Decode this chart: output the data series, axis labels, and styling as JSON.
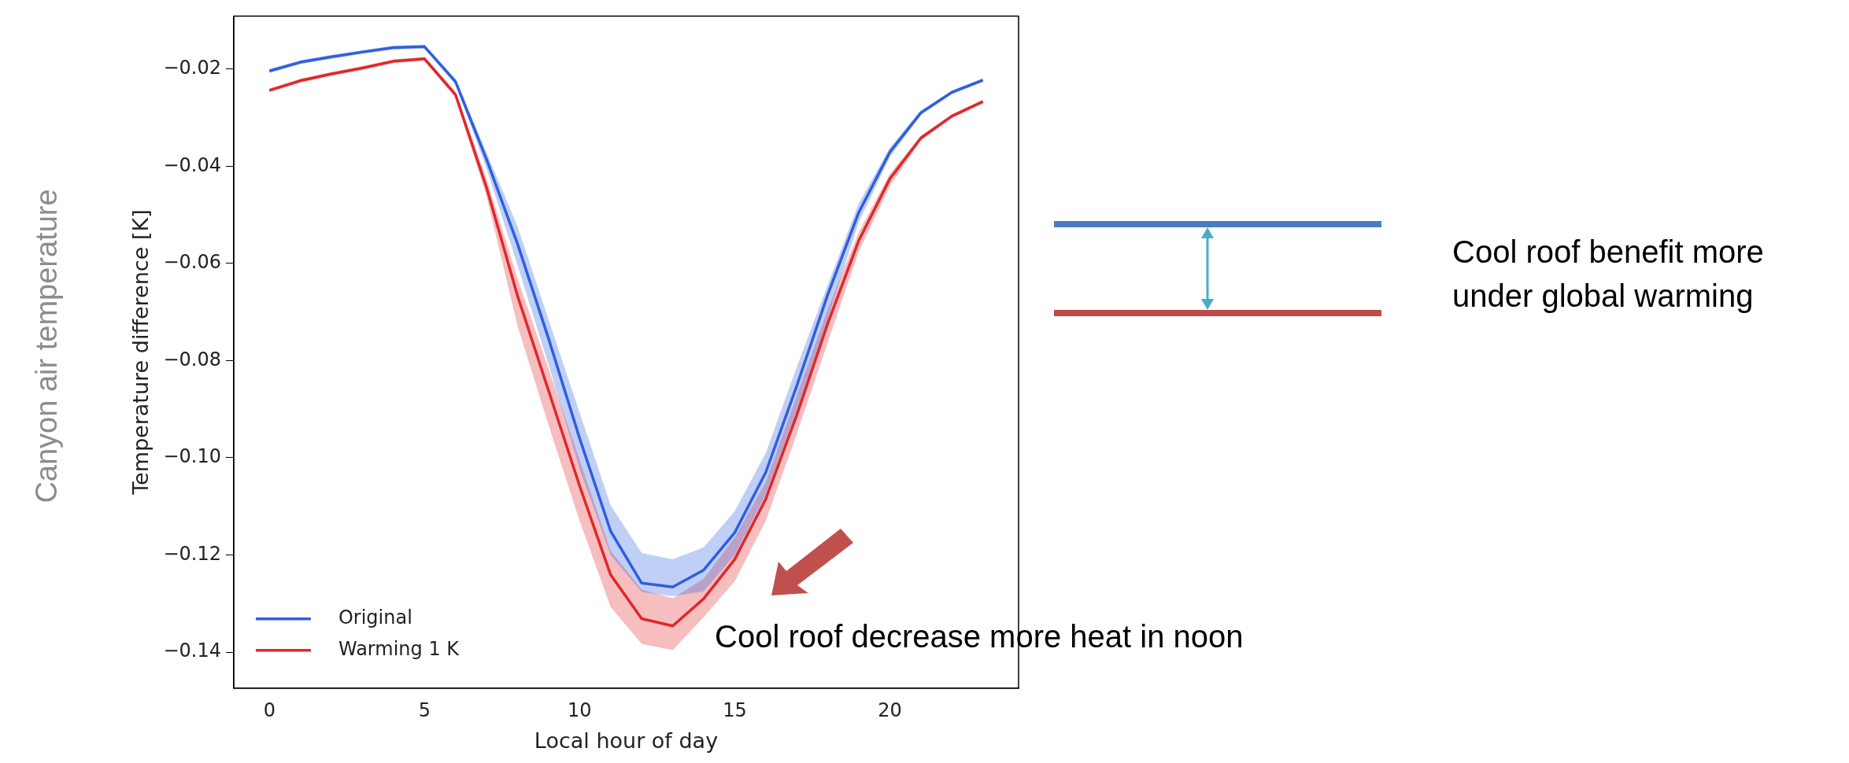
{
  "chart_data": {
    "type": "line",
    "xlabel": "Local hour of day",
    "ylabel": "Temperature difference [K]",
    "x": [
      0,
      1,
      2,
      3,
      4,
      5,
      6,
      7,
      8,
      9,
      10,
      11,
      12,
      13,
      14,
      15,
      16,
      17,
      18,
      19,
      20,
      21,
      22,
      23
    ],
    "series": [
      {
        "name": "Original",
        "color": "#2f5fe0",
        "values": [
          -0.0204,
          -0.0186,
          -0.0175,
          -0.0165,
          -0.0156,
          -0.0154,
          -0.0226,
          -0.0386,
          -0.056,
          -0.0755,
          -0.096,
          -0.1151,
          -0.1258,
          -0.1266,
          -0.1231,
          -0.1154,
          -0.103,
          -0.0852,
          -0.0664,
          -0.0495,
          -0.0371,
          -0.029,
          -0.0248,
          -0.0223
        ],
        "lower": [
          -0.0208,
          -0.019,
          -0.0179,
          -0.0169,
          -0.016,
          -0.0158,
          -0.0232,
          -0.0405,
          -0.0604,
          -0.0809,
          -0.1023,
          -0.12,
          -0.1276,
          -0.1285,
          -0.1275,
          -0.12,
          -0.1075,
          -0.0902,
          -0.0713,
          -0.0515,
          -0.0381,
          -0.0295,
          -0.0252,
          -0.0227
        ],
        "upper": [
          -0.02,
          -0.0182,
          -0.0171,
          -0.0161,
          -0.0152,
          -0.015,
          -0.022,
          -0.0372,
          -0.0524,
          -0.0716,
          -0.0907,
          -0.1098,
          -0.1196,
          -0.1209,
          -0.1184,
          -0.111,
          -0.099,
          -0.0813,
          -0.0644,
          -0.0476,
          -0.0362,
          -0.0285,
          -0.0244,
          -0.0219
        ]
      },
      {
        "name": "Warming 1 K",
        "color": "#e0282a",
        "values": [
          -0.0244,
          -0.0224,
          -0.021,
          -0.0198,
          -0.0184,
          -0.0179,
          -0.0253,
          -0.0444,
          -0.0667,
          -0.0862,
          -0.1058,
          -0.1241,
          -0.1331,
          -0.1346,
          -0.129,
          -0.1209,
          -0.1085,
          -0.0912,
          -0.0723,
          -0.0553,
          -0.0426,
          -0.0342,
          -0.0297,
          -0.0267
        ],
        "lower": [
          -0.0248,
          -0.0228,
          -0.0214,
          -0.0202,
          -0.0188,
          -0.0183,
          -0.0259,
          -0.0462,
          -0.0729,
          -0.0933,
          -0.113,
          -0.1307,
          -0.1383,
          -0.1396,
          -0.1328,
          -0.1254,
          -0.113,
          -0.0951,
          -0.0763,
          -0.0575,
          -0.0441,
          -0.0347,
          -0.0301,
          -0.0271
        ],
        "upper": [
          -0.024,
          -0.022,
          -0.0206,
          -0.0194,
          -0.018,
          -0.0175,
          -0.0247,
          -0.0426,
          -0.0631,
          -0.0817,
          -0.1005,
          -0.1192,
          -0.1271,
          -0.1289,
          -0.1249,
          -0.1164,
          -0.105,
          -0.0872,
          -0.0694,
          -0.0535,
          -0.0416,
          -0.0337,
          -0.0293,
          -0.0263
        ]
      }
    ],
    "xlim": [
      -1.15,
      24.15
    ],
    "xticks": [
      0,
      5,
      10,
      15,
      20
    ],
    "ylim": [
      -0.1474,
      -0.0091
    ],
    "yticks": [
      -0.14,
      -0.12,
      {
        "value": -0.1,
        "label": "−0.10"
      },
      -0.08,
      -0.06,
      -0.04,
      -0.02
    ],
    "grid": false,
    "legend": "bottom left",
    "marker": "none",
    "line_style": "solid",
    "annotations": [
      "Canyon air temperature",
      "Cool roof decrease more heat in noon",
      "Cool roof benefit more under global warming"
    ]
  }
}
